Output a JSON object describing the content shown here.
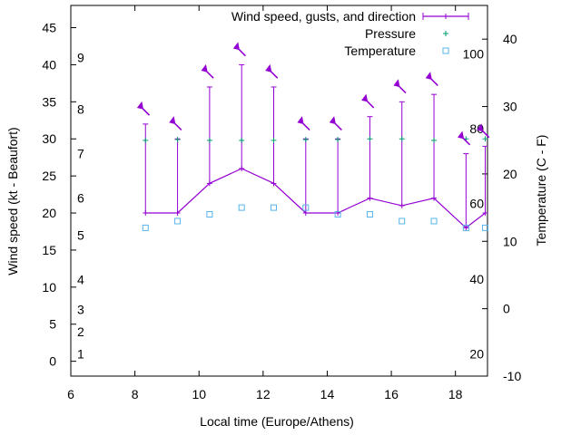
{
  "chart_data": {
    "type": "line",
    "title": "",
    "xlabel": "Local time (Europe/Athens)",
    "ylabel": "Wind speed (kt - Beaufort)",
    "y2label": "Temperature (C - F)",
    "xlim": [
      6,
      19
    ],
    "ylim": [
      -2,
      48
    ],
    "y2lim": [
      -10,
      45
    ],
    "x_ticks": [
      "6",
      "8",
      "10",
      "12",
      "14",
      "16",
      "18"
    ],
    "y_ticks": [
      "0",
      "5",
      "10",
      "15",
      "20",
      "25",
      "30",
      "35",
      "40",
      "45"
    ],
    "y2_ticks": [
      "-10",
      "0",
      "10",
      "20",
      "30",
      "40"
    ],
    "beaufort_labels": [
      {
        "label": "1",
        "kt": 1
      },
      {
        "label": "2",
        "kt": 4
      },
      {
        "label": "3",
        "kt": 7
      },
      {
        "label": "4",
        "kt": 11
      },
      {
        "label": "5",
        "kt": 17
      },
      {
        "label": "6",
        "kt": 22
      },
      {
        "label": "7",
        "kt": 28
      },
      {
        "label": "8",
        "kt": 34
      },
      {
        "label": "9",
        "kt": 41
      }
    ],
    "fahrenheit_labels": [
      {
        "label": "20",
        "c": -6.7
      },
      {
        "label": "40",
        "c": 4.4
      },
      {
        "label": "60",
        "c": 15.6
      },
      {
        "label": "80",
        "c": 26.7
      },
      {
        "label": "100",
        "c": 37.8
      }
    ],
    "legend": [
      {
        "name": "Wind speed, gusts, and direction",
        "color": "#9400d3"
      },
      {
        "name": "Pressure",
        "color": "#009e73"
      },
      {
        "name": "Temperature",
        "color": "#56b4e9"
      }
    ],
    "legend_position": "top-right",
    "grid": false,
    "series": [
      {
        "name": "Wind speed, gusts, and direction",
        "x": [
          8.33,
          9.33,
          10.33,
          11.33,
          12.33,
          13.33,
          14.33,
          15.33,
          16.33,
          17.33,
          18.33,
          18.93
        ],
        "speed": [
          20,
          20,
          24,
          26,
          24,
          20,
          20,
          22,
          21,
          22,
          18,
          20
        ],
        "gust": [
          32,
          30,
          37,
          40,
          37,
          30,
          30,
          33,
          35,
          36,
          28,
          29
        ],
        "direction_deg": [
          315,
          315,
          315,
          315,
          315,
          315,
          315,
          315,
          315,
          315,
          315,
          315
        ]
      },
      {
        "name": "Pressure",
        "x": [
          8.33,
          9.33,
          10.33,
          11.33,
          12.33,
          13.33,
          14.33,
          15.33,
          16.33,
          17.33,
          18.33,
          18.93
        ],
        "values": [
          29.8,
          29.9,
          29.8,
          29.8,
          29.8,
          29.9,
          29.9,
          30.0,
          30.0,
          29.8,
          30.0,
          30.0
        ]
      },
      {
        "name": "Temperature",
        "x": [
          8.33,
          9.33,
          10.33,
          11.33,
          12.33,
          13.33,
          14.33,
          15.33,
          16.33,
          17.33,
          18.33,
          18.93
        ],
        "values": [
          12,
          13,
          14,
          15,
          15,
          15,
          14,
          14,
          13,
          13,
          12,
          12
        ]
      }
    ]
  }
}
